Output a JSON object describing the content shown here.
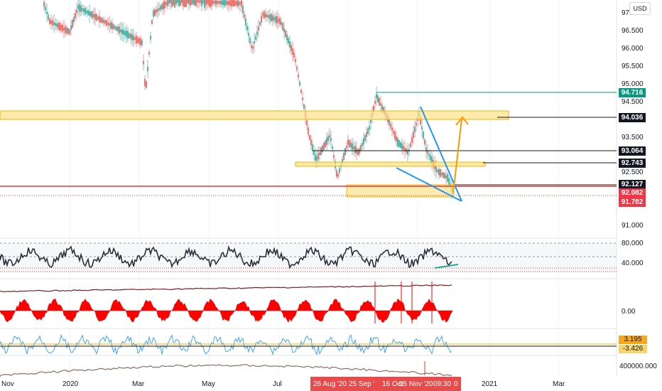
{
  "currency_badge": "USD",
  "price_axis": [
    "97.000",
    "96.500",
    "96.000",
    "95.500",
    "95.000",
    "94.500",
    "93.500",
    "92.500",
    "91.000"
  ],
  "price_tags": [
    {
      "value": "94.716",
      "color": "#089981"
    },
    {
      "value": "94.036",
      "color": "#131722"
    },
    {
      "value": "93.064",
      "color": "#131722"
    },
    {
      "value": "92.743",
      "color": "#131722"
    },
    {
      "value": "92.127",
      "color": "#131722"
    },
    {
      "value": "92.082",
      "color": "#f23645"
    },
    {
      "value": "91.782",
      "color": "#f23645"
    }
  ],
  "rsi_axis": [
    "80.000",
    "40.000"
  ],
  "osc_axis": [
    "0.00"
  ],
  "blue_tags": [
    "3.195",
    "-3.426"
  ],
  "volume_axis": "400000.000",
  "time_axis": {
    "ticks": [
      "Nov",
      "2020",
      "Mar",
      "May",
      "Jul",
      "2021",
      "Mar"
    ],
    "highlight": [
      "26 Aug '20",
      "25 Sep '",
      "16 Oct",
      "05 Nov '20",
      "09:30",
      "0"
    ]
  },
  "colors": {
    "support": "#e53935",
    "zone": "#fbe28a",
    "zone_border": "#f0b400",
    "wedge": "#2196f3",
    "arrow": "#ff9800",
    "rsi_line": "#2a2e39",
    "osc": "#ff0000",
    "osc2": "#1e88e5"
  }
}
